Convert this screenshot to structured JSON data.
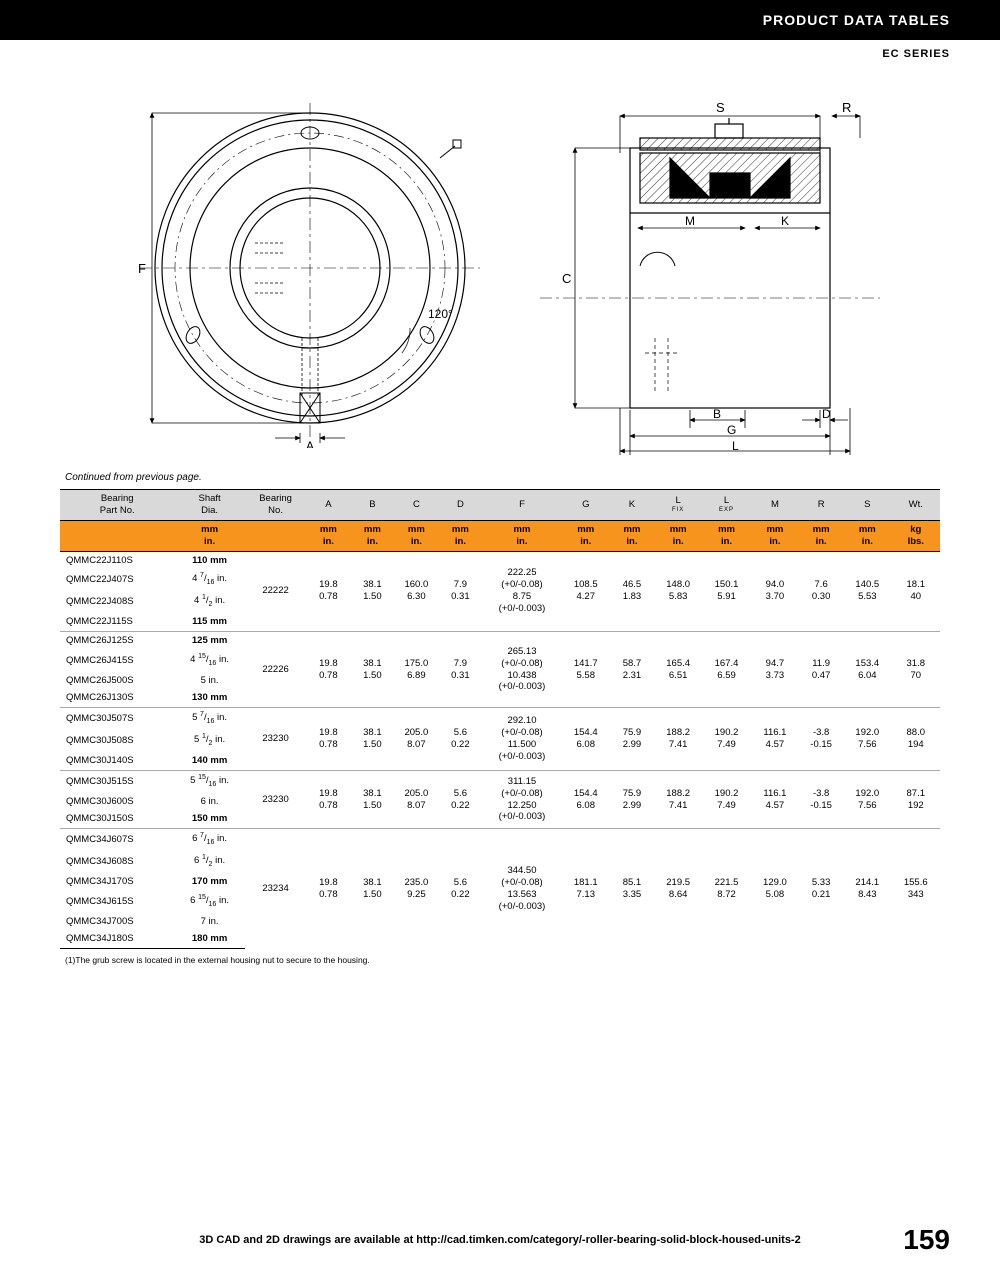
{
  "header": {
    "title": "PRODUCT DATA TABLES",
    "series": "EC SERIES"
  },
  "continued": "Continued from previous page.",
  "footnote": "(1)The grub screw is located in the external housing nut to secure to the housing.",
  "footer_text": "3D CAD and 2D drawings are available at http://cad.timken.com/category/-roller-bearing-solid-block-housed-units-2",
  "page_number": "159",
  "diagram": {
    "left_label_F": "F",
    "left_label_A": "A",
    "angle": "120°",
    "right_labels": {
      "C": "C",
      "S": "S",
      "R": "R",
      "M": "M",
      "K": "K",
      "B": "B",
      "D": "D",
      "G": "G",
      "L": "L"
    },
    "stroke": "#000000",
    "dim_color": "#000000"
  },
  "table": {
    "header_bg": "#d9d9d9",
    "units_bg": "#f7941d",
    "col_widths_pct": [
      13,
      8,
      7,
      5,
      5,
      5,
      5,
      9,
      5.5,
      5,
      5.5,
      5.5,
      5.5,
      5,
      5.5,
      5.5
    ],
    "columns": [
      {
        "label": "Bearing\nPart No.",
        "unit": ""
      },
      {
        "label": "Shaft\nDia.",
        "unit": "mm\nin."
      },
      {
        "label": "Bearing\nNo.",
        "unit": ""
      },
      {
        "label": "A",
        "unit": "mm\nin."
      },
      {
        "label": "B",
        "unit": "mm\nin."
      },
      {
        "label": "C",
        "unit": "mm\nin."
      },
      {
        "label": "D",
        "unit": "mm\nin."
      },
      {
        "label": "F",
        "unit": "mm\nin."
      },
      {
        "label": "G",
        "unit": "mm\nin."
      },
      {
        "label": "K",
        "unit": "mm\nin."
      },
      {
        "label": "L",
        "sub": "FIX",
        "unit": "mm\nin."
      },
      {
        "label": "L",
        "sub": "EXP",
        "unit": "mm\nin."
      },
      {
        "label": "M",
        "unit": "mm\nin."
      },
      {
        "label": "R",
        "unit": "mm\nin."
      },
      {
        "label": "S",
        "unit": "mm\nin."
      },
      {
        "label": "Wt.",
        "unit": "kg\nlbs."
      }
    ],
    "groups": [
      {
        "parts": [
          {
            "pn": "QMMC22J110S",
            "shaft": "110 mm",
            "bold": true
          },
          {
            "pn": "QMMC22J407S",
            "shaft": "4 7/16 in."
          },
          {
            "pn": "QMMC22J408S",
            "shaft": "4 1/2 in."
          },
          {
            "pn": "QMMC22J115S",
            "shaft": "115 mm",
            "bold": true
          }
        ],
        "bearing": "22222",
        "A": [
          "19.8",
          "0.78"
        ],
        "B": [
          "38.1",
          "1.50"
        ],
        "C": [
          "160.0",
          "6.30"
        ],
        "D": [
          "7.9",
          "0.31"
        ],
        "F": [
          "222.25",
          "(+0/-0.08)",
          "8.75",
          "(+0/-0.003)"
        ],
        "G": [
          "108.5",
          "4.27"
        ],
        "K": [
          "46.5",
          "1.83"
        ],
        "LFIX": [
          "148.0",
          "5.83"
        ],
        "LEXP": [
          "150.1",
          "5.91"
        ],
        "M": [
          "94.0",
          "3.70"
        ],
        "R": [
          "7.6",
          "0.30"
        ],
        "S": [
          "140.5",
          "5.53"
        ],
        "Wt": [
          "18.1",
          "40"
        ]
      },
      {
        "parts": [
          {
            "pn": "QMMC26J125S",
            "shaft": "125 mm",
            "bold": true
          },
          {
            "pn": "QMMC26J415S",
            "shaft": "4 15/16 in."
          },
          {
            "pn": "QMMC26J500S",
            "shaft": "5 in."
          },
          {
            "pn": "QMMC26J130S",
            "shaft": "130 mm",
            "bold": true
          }
        ],
        "bearing": "22226",
        "A": [
          "19.8",
          "0.78"
        ],
        "B": [
          "38.1",
          "1.50"
        ],
        "C": [
          "175.0",
          "6.89"
        ],
        "D": [
          "7.9",
          "0.31"
        ],
        "F": [
          "265.13",
          "(+0/-0.08)",
          "10.438",
          "(+0/-0.003)"
        ],
        "G": [
          "141.7",
          "5.58"
        ],
        "K": [
          "58.7",
          "2.31"
        ],
        "LFIX": [
          "165.4",
          "6.51"
        ],
        "LEXP": [
          "167.4",
          "6.59"
        ],
        "M": [
          "94.7",
          "3.73"
        ],
        "R": [
          "11.9",
          "0.47"
        ],
        "S": [
          "153.4",
          "6.04"
        ],
        "Wt": [
          "31.8",
          "70"
        ]
      },
      {
        "parts": [
          {
            "pn": "QMMC30J507S",
            "shaft": "5 7/16 in."
          },
          {
            "pn": "QMMC30J508S",
            "shaft": "5 1/2 in."
          },
          {
            "pn": "QMMC30J140S",
            "shaft": "140 mm",
            "bold": true
          }
        ],
        "bearing": "23230",
        "A": [
          "19.8",
          "0.78"
        ],
        "B": [
          "38.1",
          "1.50"
        ],
        "C": [
          "205.0",
          "8.07"
        ],
        "D": [
          "5.6",
          "0.22"
        ],
        "F": [
          "292.10",
          "(+0/-0.08)",
          "11.500",
          "(+0/-0.003)"
        ],
        "G": [
          "154.4",
          "6.08"
        ],
        "K": [
          "75.9",
          "2.99"
        ],
        "LFIX": [
          "188.2",
          "7.41"
        ],
        "LEXP": [
          "190.2",
          "7.49"
        ],
        "M": [
          "116.1",
          "4.57"
        ],
        "R": [
          "-3.8",
          "-0.15"
        ],
        "S": [
          "192.0",
          "7.56"
        ],
        "Wt": [
          "88.0",
          "194"
        ]
      },
      {
        "parts": [
          {
            "pn": "QMMC30J515S",
            "shaft": "5 15/16 in."
          },
          {
            "pn": "QMMC30J600S",
            "shaft": "6 in."
          },
          {
            "pn": "QMMC30J150S",
            "shaft": "150 mm",
            "bold": true
          }
        ],
        "bearing": "23230",
        "A": [
          "19.8",
          "0.78"
        ],
        "B": [
          "38.1",
          "1.50"
        ],
        "C": [
          "205.0",
          "8.07"
        ],
        "D": [
          "5.6",
          "0.22"
        ],
        "F": [
          "311.15",
          "(+0/-0.08)",
          "12.250",
          "(+0/-0.003)"
        ],
        "G": [
          "154.4",
          "6.08"
        ],
        "K": [
          "75.9",
          "2.99"
        ],
        "LFIX": [
          "188.2",
          "7.41"
        ],
        "LEXP": [
          "190.2",
          "7.49"
        ],
        "M": [
          "116.1",
          "4.57"
        ],
        "R": [
          "-3.8",
          "-0.15"
        ],
        "S": [
          "192.0",
          "7.56"
        ],
        "Wt": [
          "87.1",
          "192"
        ]
      },
      {
        "parts": [
          {
            "pn": "QMMC34J607S",
            "shaft": "6 7/16 in."
          },
          {
            "pn": "QMMC34J608S",
            "shaft": "6 1/2 in."
          },
          {
            "pn": "QMMC34J170S",
            "shaft": "170 mm",
            "bold": true
          },
          {
            "pn": "QMMC34J615S",
            "shaft": "6 15/16 in."
          },
          {
            "pn": "QMMC34J700S",
            "shaft": "7 in."
          },
          {
            "pn": "QMMC34J180S",
            "shaft": "180 mm",
            "bold": true
          }
        ],
        "bearing": "23234",
        "A": [
          "19.8",
          "0.78"
        ],
        "B": [
          "38.1",
          "1.50"
        ],
        "C": [
          "235.0",
          "9.25"
        ],
        "D": [
          "5.6",
          "0.22"
        ],
        "F": [
          "344.50",
          "(+0/-0.08)",
          "13.563",
          "(+0/-0.003)"
        ],
        "G": [
          "181.1",
          "7.13"
        ],
        "K": [
          "85.1",
          "3.35"
        ],
        "LFIX": [
          "219.5",
          "8.64"
        ],
        "LEXP": [
          "221.5",
          "8.72"
        ],
        "M": [
          "129.0",
          "5.08"
        ],
        "R": [
          "5.33",
          "0.21"
        ],
        "S": [
          "214.1",
          "8.43"
        ],
        "Wt": [
          "155.6",
          "343"
        ]
      }
    ]
  }
}
